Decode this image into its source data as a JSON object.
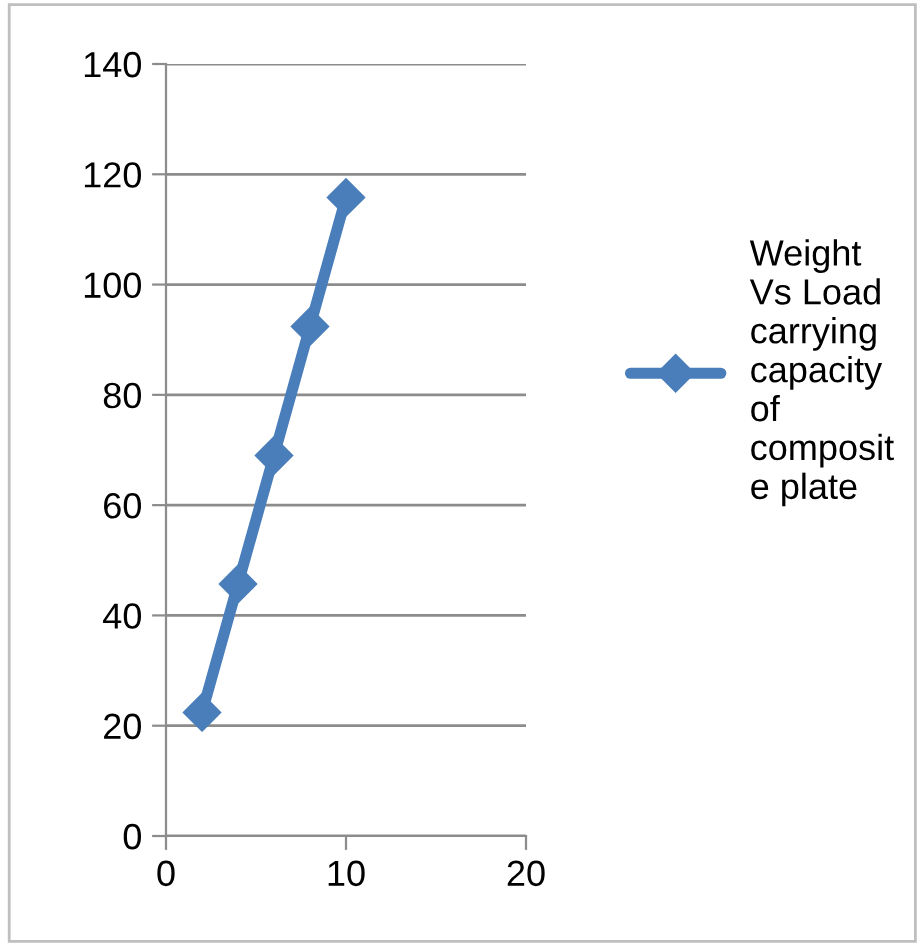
{
  "chart_data": {
    "type": "line",
    "x": [
      2,
      4,
      6,
      8,
      10
    ],
    "series": [
      {
        "name": "Weight\nVs Load\ncarrying\ncapacity\nof\ncomposit\ne plate",
        "color": "#4a7ebb",
        "values": [
          22.4,
          45.7,
          69.0,
          92.4,
          115.8
        ]
      }
    ],
    "xlim": [
      0,
      20
    ],
    "xticks": [
      0,
      10,
      20
    ],
    "ylim": [
      0,
      140
    ],
    "yticks": [
      0,
      20,
      40,
      60,
      80,
      100,
      120,
      140
    ],
    "grid": "y",
    "legend": "right",
    "marker": "diamond",
    "line_style": "solid"
  }
}
